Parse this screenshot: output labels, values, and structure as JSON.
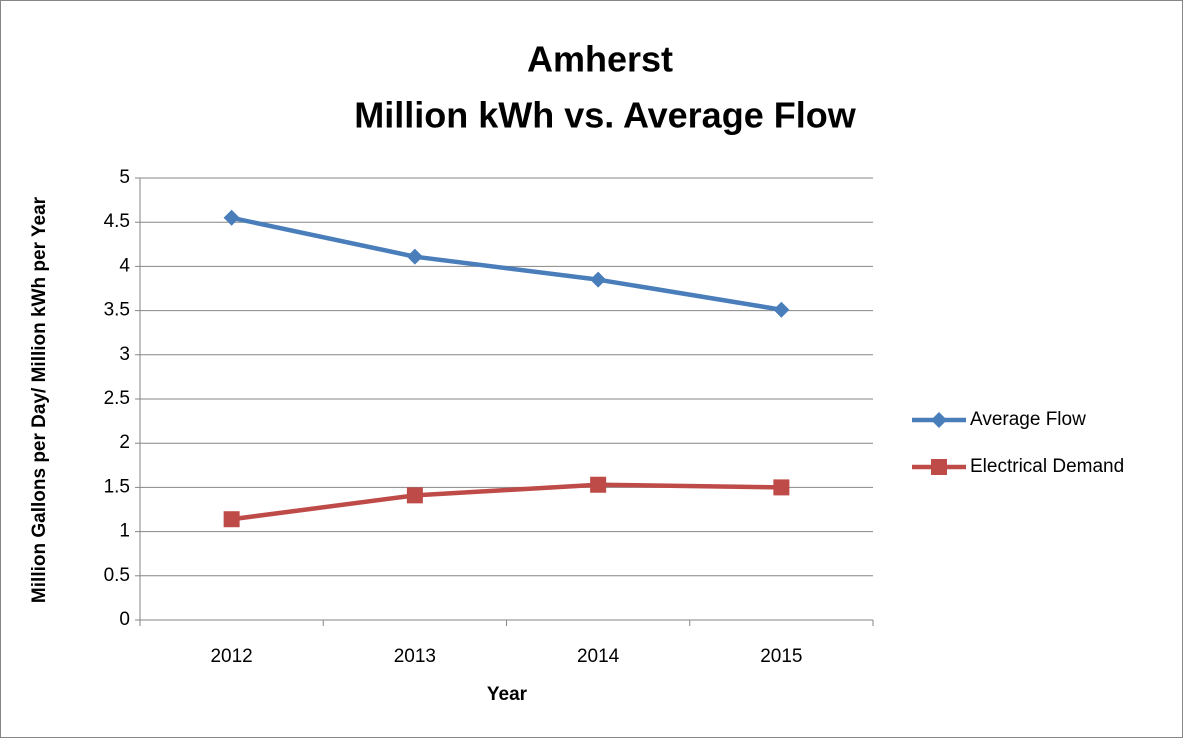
{
  "chart_data": {
    "type": "line",
    "title": [
      "Amherst",
      "Million kWh vs. Average Flow"
    ],
    "xlabel": "Year",
    "ylabel": "Million Gallons per Day/ Million kWh per Year",
    "categories": [
      "2012",
      "2013",
      "2014",
      "2015"
    ],
    "series": [
      {
        "name": "Average Flow",
        "color": "#4a7ebb",
        "marker": "diamond",
        "values": [
          4.55,
          4.11,
          3.85,
          3.51
        ]
      },
      {
        "name": "Electrical Demand",
        "color": "#be4b48",
        "marker": "square",
        "values": [
          1.14,
          1.41,
          1.53,
          1.5
        ]
      }
    ],
    "ylim": [
      0,
      5
    ],
    "yticks": [
      0,
      0.5,
      1,
      1.5,
      2,
      2.5,
      3,
      3.5,
      4,
      4.5,
      5
    ],
    "grid": true,
    "legend": "right"
  }
}
